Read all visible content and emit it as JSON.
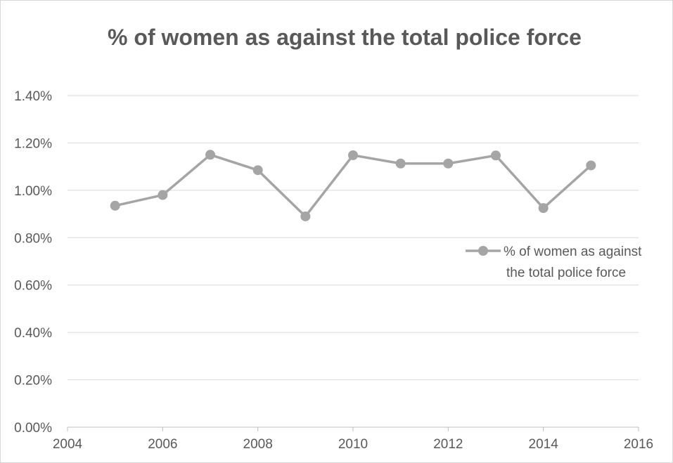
{
  "chart_data": {
    "type": "line",
    "title": "% of women as against the total police force",
    "xlabel": "",
    "ylabel": "",
    "x_ticks": [
      "2004",
      "2006",
      "2008",
      "2010",
      "2012",
      "2014",
      "2016"
    ],
    "y_ticks": [
      "0.00%",
      "0.20%",
      "0.40%",
      "0.60%",
      "0.80%",
      "1.00%",
      "1.20%",
      "1.40%"
    ],
    "xlim": [
      2004,
      2016
    ],
    "ylim": [
      0,
      1.4
    ],
    "grid": "horizontal",
    "legend_position": "right",
    "series": [
      {
        "name": "% of women as against the total police force",
        "legend_lines": [
          "% of women as against",
          "the total police force"
        ],
        "color": "#a5a5a5",
        "x": [
          2005,
          2006,
          2007,
          2008,
          2009,
          2010,
          2011,
          2012,
          2013,
          2014,
          2015
        ],
        "y": [
          0.935,
          0.98,
          1.15,
          1.085,
          0.89,
          1.148,
          1.113,
          1.113,
          1.147,
          0.925,
          1.105
        ]
      }
    ]
  },
  "colors": {
    "gridline": "#d9d9d9",
    "axis": "#bfbfbf",
    "text": "#595959"
  }
}
